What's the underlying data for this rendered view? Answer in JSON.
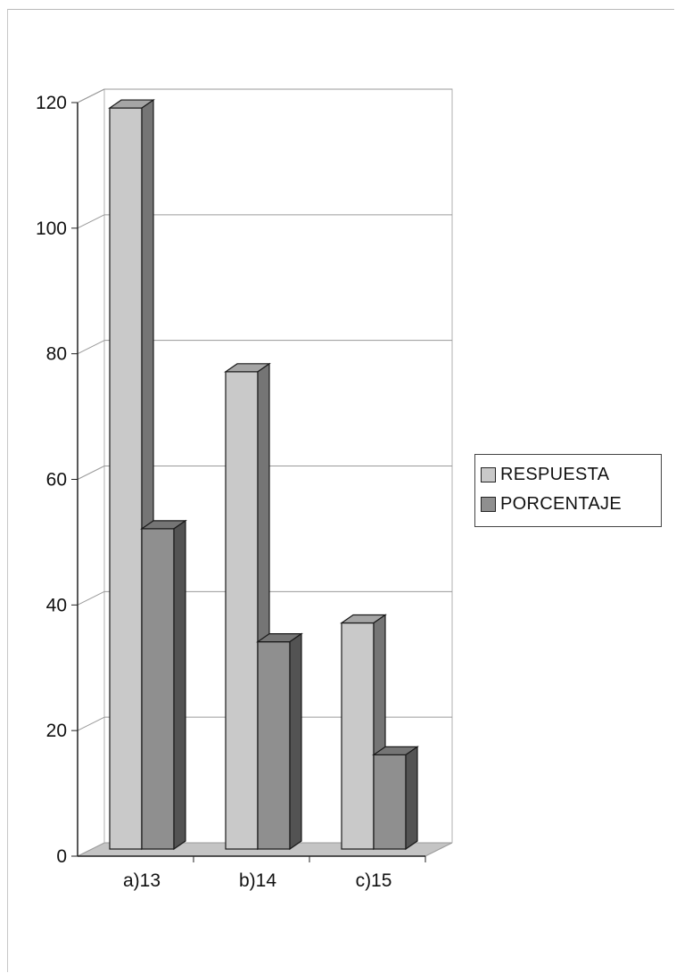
{
  "chart_data": {
    "type": "bar",
    "categories": [
      "a)13",
      "b)14",
      "c)15"
    ],
    "series": [
      {
        "name": "RESPUESTA",
        "values": [
          118,
          76,
          36
        ],
        "color": "#c9c9c9"
      },
      {
        "name": "PORCENTAJE",
        "values": [
          51,
          33,
          15
        ],
        "color": "#8f8f8f"
      }
    ],
    "y_ticks": [
      "0",
      "20",
      "40",
      "60",
      "80",
      "100",
      "120"
    ],
    "ylim": [
      0,
      120
    ],
    "grid": true,
    "style": "3d-column",
    "legend_position": "right"
  }
}
